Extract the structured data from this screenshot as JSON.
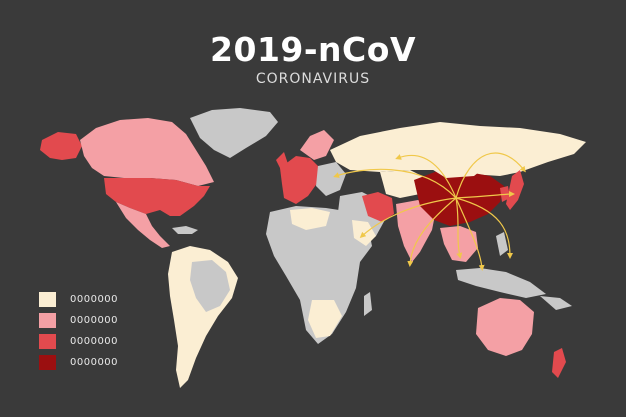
{
  "header": {
    "title": "2019-nCoV",
    "subtitle": "CORONAVIRUS"
  },
  "colors": {
    "background": "#3a3a3a",
    "no_data": "#c8c8c8",
    "level_1": "#fbeed3",
    "level_2": "#f4a0a5",
    "level_3": "#e24a4e",
    "level_4": "#9b0f10",
    "arrows": "#f0c84a"
  },
  "legend": {
    "items": [
      {
        "label": "0000000",
        "color": "#fbeed3"
      },
      {
        "label": "0000000",
        "color": "#f4a0a5"
      },
      {
        "label": "0000000",
        "color": "#e24a4e"
      },
      {
        "label": "0000000",
        "color": "#9b0f10"
      }
    ]
  }
}
